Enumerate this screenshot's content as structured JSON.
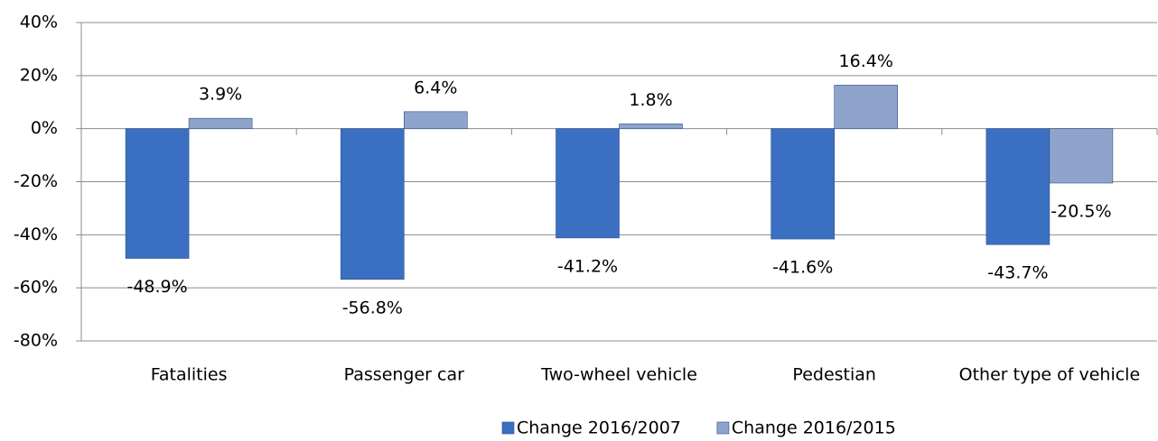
{
  "chart_data": {
    "type": "bar",
    "categories": [
      "Fatalities",
      "Passenger car",
      "Two-wheel vehicle",
      "Pedestian",
      "Other type of vehicle"
    ],
    "series": [
      {
        "name": "Change 2016/2007",
        "color": "#3b6fc2",
        "values": [
          -48.9,
          -56.8,
          -41.2,
          -41.6,
          -43.7
        ],
        "value_labels": [
          "-48.9%",
          "-56.8%",
          "-41.2%",
          "-41.6%",
          "-43.7%"
        ]
      },
      {
        "name": "Change 2016/2015",
        "color": "#8ea4cc",
        "values": [
          3.9,
          6.4,
          1.8,
          16.4,
          -20.5
        ],
        "value_labels": [
          "3.9%",
          "6.4%",
          "1.8%",
          "16.4%",
          "-20.5%"
        ]
      }
    ],
    "ylim": [
      -80,
      40
    ],
    "yticks": [
      {
        "value": -80,
        "label": "-80%"
      },
      {
        "value": -60,
        "label": "-60%"
      },
      {
        "value": -40,
        "label": "-40%"
      },
      {
        "value": -20,
        "label": "-20%"
      },
      {
        "value": 0,
        "label": "0%"
      },
      {
        "value": 20,
        "label": "20%"
      },
      {
        "value": 40,
        "label": "40%"
      }
    ],
    "grid": true,
    "legend": "bottom"
  }
}
